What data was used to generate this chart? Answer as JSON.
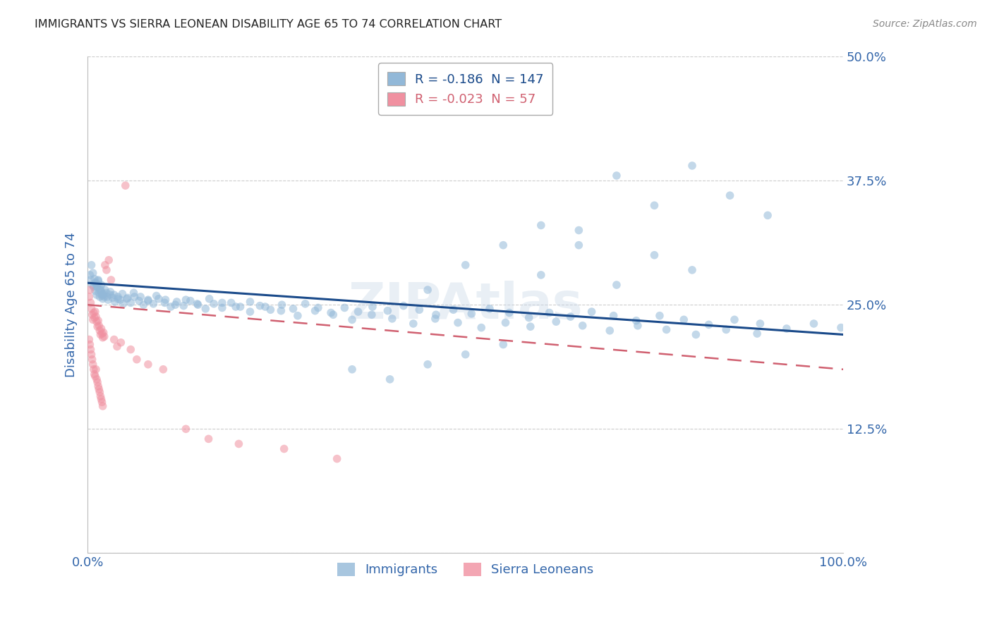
{
  "title": "IMMIGRANTS VS SIERRA LEONEAN DISABILITY AGE 65 TO 74 CORRELATION CHART",
  "source": "Source: ZipAtlas.com",
  "ylabel": "Disability Age 65 to 74",
  "xlim": [
    0,
    1.0
  ],
  "ylim": [
    0,
    0.5
  ],
  "ytick_vals": [
    0.0,
    0.125,
    0.25,
    0.375,
    0.5
  ],
  "ytick_labels": [
    "",
    "12.5%",
    "25.0%",
    "37.5%",
    "50.0%"
  ],
  "xtick_vals": [
    0.0,
    0.2,
    0.4,
    0.6,
    0.8,
    1.0
  ],
  "xtick_labels": [
    "0.0%",
    "",
    "",
    "",
    "",
    "100.0%"
  ],
  "watermark": "ZIPAtlas",
  "imm_R": "-0.186",
  "imm_N": "147",
  "sle_R": "-0.023",
  "sle_N": "57",
  "imm_color": "#92b8d8",
  "imm_trend_color": "#1a4a8a",
  "sle_color": "#f090a0",
  "sle_trend_color": "#d06070",
  "dot_size": 70,
  "dot_alpha": 0.55,
  "background_color": "#ffffff",
  "grid_color": "#cccccc",
  "title_color": "#222222",
  "axis_label_color": "#3366aa",
  "tick_label_color": "#3366aa",
  "immigrants_x": [
    0.003,
    0.004,
    0.005,
    0.006,
    0.007,
    0.008,
    0.009,
    0.01,
    0.011,
    0.012,
    0.013,
    0.014,
    0.015,
    0.016,
    0.017,
    0.018,
    0.019,
    0.02,
    0.021,
    0.022,
    0.025,
    0.027,
    0.03,
    0.033,
    0.036,
    0.04,
    0.043,
    0.047,
    0.052,
    0.057,
    0.062,
    0.068,
    0.074,
    0.08,
    0.087,
    0.094,
    0.102,
    0.11,
    0.118,
    0.127,
    0.136,
    0.146,
    0.156,
    0.167,
    0.178,
    0.19,
    0.202,
    0.215,
    0.228,
    0.242,
    0.257,
    0.272,
    0.288,
    0.305,
    0.322,
    0.34,
    0.358,
    0.377,
    0.397,
    0.418,
    0.439,
    0.461,
    0.484,
    0.508,
    0.532,
    0.558,
    0.584,
    0.611,
    0.639,
    0.667,
    0.696,
    0.726,
    0.757,
    0.789,
    0.822,
    0.856,
    0.89,
    0.925,
    0.961,
    0.997,
    0.01,
    0.012,
    0.014,
    0.016,
    0.018,
    0.02,
    0.023,
    0.026,
    0.03,
    0.035,
    0.04,
    0.046,
    0.053,
    0.061,
    0.07,
    0.08,
    0.091,
    0.103,
    0.116,
    0.13,
    0.145,
    0.161,
    0.178,
    0.196,
    0.215,
    0.235,
    0.256,
    0.278,
    0.301,
    0.325,
    0.35,
    0.376,
    0.403,
    0.431,
    0.46,
    0.49,
    0.521,
    0.553,
    0.586,
    0.62,
    0.655,
    0.691,
    0.728,
    0.766,
    0.805,
    0.845,
    0.886,
    0.6,
    0.65,
    0.7,
    0.75,
    0.8,
    0.85,
    0.9,
    0.5,
    0.55,
    0.45,
    0.7,
    0.75,
    0.8,
    0.65,
    0.6,
    0.55,
    0.5,
    0.45,
    0.4,
    0.35
  ],
  "immigrants_y": [
    0.28,
    0.275,
    0.29,
    0.27,
    0.282,
    0.268,
    0.276,
    0.264,
    0.272,
    0.26,
    0.268,
    0.274,
    0.262,
    0.258,
    0.266,
    0.263,
    0.259,
    0.256,
    0.261,
    0.258,
    0.262,
    0.255,
    0.26,
    0.257,
    0.253,
    0.258,
    0.255,
    0.251,
    0.256,
    0.252,
    0.258,
    0.254,
    0.25,
    0.255,
    0.251,
    0.256,
    0.252,
    0.248,
    0.253,
    0.249,
    0.254,
    0.25,
    0.246,
    0.251,
    0.247,
    0.252,
    0.248,
    0.253,
    0.249,
    0.245,
    0.25,
    0.246,
    0.251,
    0.247,
    0.242,
    0.247,
    0.243,
    0.248,
    0.244,
    0.249,
    0.245,
    0.24,
    0.245,
    0.241,
    0.246,
    0.242,
    0.237,
    0.242,
    0.238,
    0.243,
    0.239,
    0.234,
    0.239,
    0.235,
    0.23,
    0.235,
    0.231,
    0.226,
    0.231,
    0.227,
    0.272,
    0.268,
    0.275,
    0.265,
    0.27,
    0.26,
    0.265,
    0.258,
    0.263,
    0.26,
    0.256,
    0.261,
    0.257,
    0.262,
    0.258,
    0.254,
    0.259,
    0.255,
    0.25,
    0.255,
    0.251,
    0.256,
    0.252,
    0.248,
    0.243,
    0.248,
    0.244,
    0.239,
    0.244,
    0.24,
    0.235,
    0.24,
    0.236,
    0.231,
    0.236,
    0.232,
    0.227,
    0.232,
    0.228,
    0.233,
    0.229,
    0.224,
    0.229,
    0.225,
    0.22,
    0.225,
    0.221,
    0.33,
    0.31,
    0.38,
    0.35,
    0.39,
    0.36,
    0.34,
    0.29,
    0.31,
    0.265,
    0.27,
    0.3,
    0.285,
    0.325,
    0.28,
    0.21,
    0.2,
    0.19,
    0.175,
    0.185
  ],
  "sierra_x": [
    0.002,
    0.003,
    0.004,
    0.005,
    0.006,
    0.007,
    0.008,
    0.009,
    0.01,
    0.011,
    0.012,
    0.013,
    0.014,
    0.015,
    0.016,
    0.017,
    0.018,
    0.019,
    0.02,
    0.021,
    0.022,
    0.023,
    0.025,
    0.028,
    0.031,
    0.035,
    0.039,
    0.044,
    0.05,
    0.057,
    0.002,
    0.003,
    0.004,
    0.005,
    0.006,
    0.007,
    0.008,
    0.009,
    0.01,
    0.011,
    0.012,
    0.013,
    0.014,
    0.015,
    0.016,
    0.017,
    0.018,
    0.019,
    0.02,
    0.065,
    0.08,
    0.1,
    0.13,
    0.16,
    0.2,
    0.26,
    0.33
  ],
  "sierra_y": [
    0.258,
    0.265,
    0.252,
    0.246,
    0.24,
    0.235,
    0.242,
    0.237,
    0.243,
    0.238,
    0.233,
    0.228,
    0.234,
    0.229,
    0.224,
    0.22,
    0.226,
    0.221,
    0.217,
    0.222,
    0.218,
    0.29,
    0.285,
    0.295,
    0.275,
    0.215,
    0.208,
    0.212,
    0.37,
    0.205,
    0.215,
    0.21,
    0.205,
    0.2,
    0.195,
    0.19,
    0.185,
    0.18,
    0.178,
    0.185,
    0.175,
    0.172,
    0.168,
    0.165,
    0.162,
    0.158,
    0.155,
    0.152,
    0.148,
    0.195,
    0.19,
    0.185,
    0.125,
    0.115,
    0.11,
    0.105,
    0.095
  ],
  "imm_trend_x": [
    0.0,
    1.0
  ],
  "imm_trend_y": [
    0.272,
    0.22
  ],
  "sle_trend_x": [
    0.0,
    1.0
  ],
  "sle_trend_y": [
    0.25,
    0.185
  ]
}
